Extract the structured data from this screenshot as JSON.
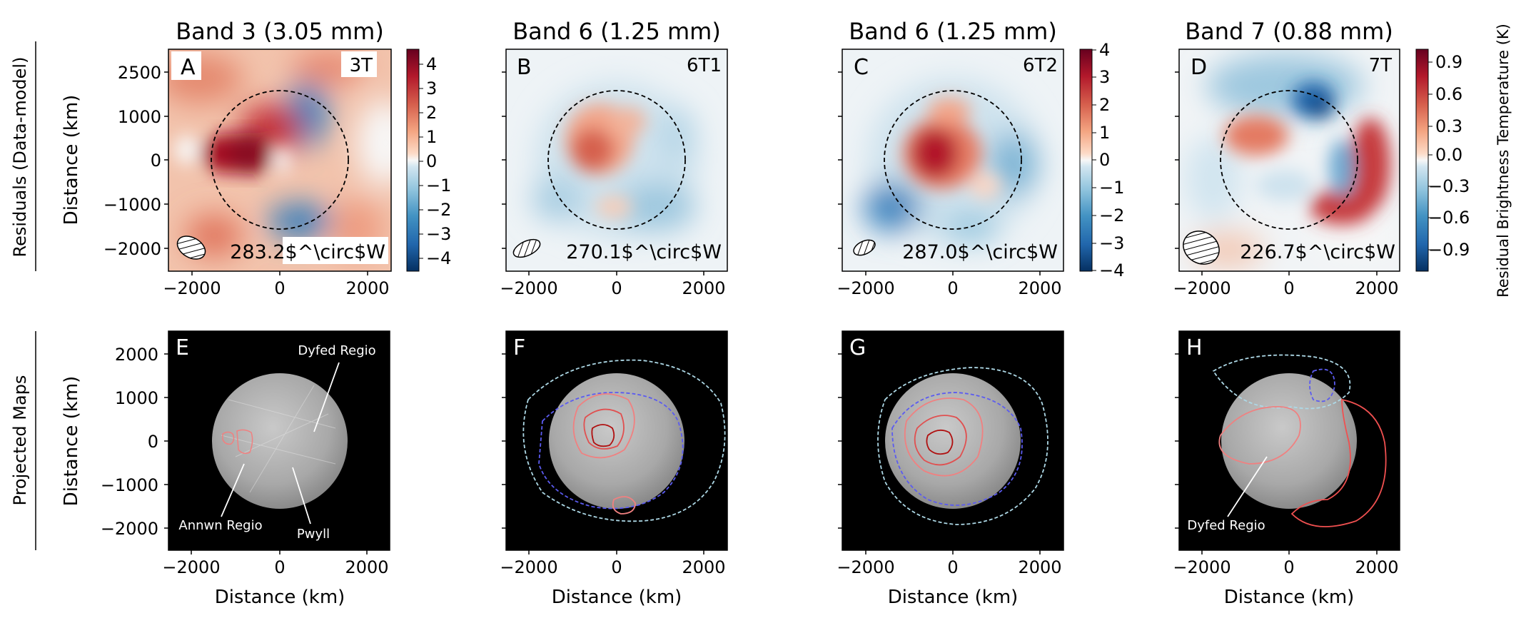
{
  "figure": {
    "row_labels": [
      "Residuals (Data-model)",
      "Projected Maps"
    ],
    "colorbar_label": "Residual Brightness Temperature (K)"
  },
  "chart_data": [
    {
      "panel": "A",
      "type": "heatmap",
      "title": "Band 3 (3.05 mm)",
      "tag": "3T",
      "longitude": "283.2$^\\circ$W",
      "xlabel": "",
      "ylabel": "Distance (km)",
      "xticks": [
        "−2000",
        "0",
        "2000"
      ],
      "yticks": [
        "2500",
        "1000",
        "0",
        "−1000",
        "−2000"
      ],
      "xlim": [
        -2500,
        2500
      ],
      "ylim": [
        -2500,
        2500
      ],
      "colorbar": {
        "ticks": [
          "4",
          "3",
          "2",
          "1",
          "0",
          "−1",
          "−2",
          "−3",
          "−4"
        ],
        "range": [
          -4.5,
          4.5
        ]
      }
    },
    {
      "panel": "B",
      "type": "heatmap",
      "title": "Band 6 (1.25 mm)",
      "tag": "6T1",
      "longitude": "270.1$^\\circ$W",
      "xlabel": "",
      "ylabel": "",
      "xticks": [
        "−2000",
        "0",
        "2000"
      ],
      "xlim": [
        -2500,
        2500
      ],
      "ylim": [
        -2500,
        2500
      ]
    },
    {
      "panel": "C",
      "type": "heatmap",
      "title": "Band 6 (1.25 mm)",
      "tag": "6T2",
      "longitude": "287.0$^\\circ$W",
      "xlabel": "",
      "ylabel": "",
      "xticks": [
        "−2000",
        "0",
        "2000"
      ],
      "xlim": [
        -2500,
        2500
      ],
      "ylim": [
        -2500,
        2500
      ],
      "colorbar": {
        "ticks": [
          "4",
          "3",
          "2",
          "1",
          "0",
          "−1",
          "−2",
          "−3",
          "−4"
        ],
        "range": [
          -4,
          4
        ]
      }
    },
    {
      "panel": "D",
      "type": "heatmap",
      "title": "Band 7 (0.88 mm)",
      "tag": "7T",
      "longitude": "226.7$^\\circ$W",
      "xlabel": "",
      "ylabel": "",
      "xticks": [
        "−2000",
        "0",
        "2000"
      ],
      "xlim": [
        -2500,
        2500
      ],
      "ylim": [
        -2500,
        2500
      ],
      "colorbar": {
        "ticks": [
          "0.9",
          "0.6",
          "0.3",
          "0.0",
          "−0.3",
          "−0.6",
          "−0.9"
        ],
        "range": [
          -1.05,
          1.05
        ]
      }
    },
    {
      "panel": "E",
      "type": "map",
      "xlabel": "Distance (km)",
      "ylabel": "Distance (km)",
      "xticks": [
        "−2000",
        "0",
        "2000"
      ],
      "yticks": [
        "2000",
        "1000",
        "0",
        "−1000",
        "−2000"
      ],
      "annotations": [
        "Dyfed Regio",
        "Annwn Regio",
        "Pwyll"
      ]
    },
    {
      "panel": "F",
      "type": "map",
      "xlabel": "Distance (km)",
      "ylabel": "",
      "xticks": [
        "−2000",
        "0",
        "2000"
      ]
    },
    {
      "panel": "G",
      "type": "map",
      "xlabel": "Distance (km)",
      "ylabel": "",
      "xticks": [
        "−2000",
        "0",
        "2000"
      ]
    },
    {
      "panel": "H",
      "type": "map",
      "xlabel": "Distance (km)",
      "ylabel": "",
      "xticks": [
        "−2000",
        "0",
        "2000"
      ],
      "annotations": [
        "Dyfed Regio"
      ]
    }
  ]
}
